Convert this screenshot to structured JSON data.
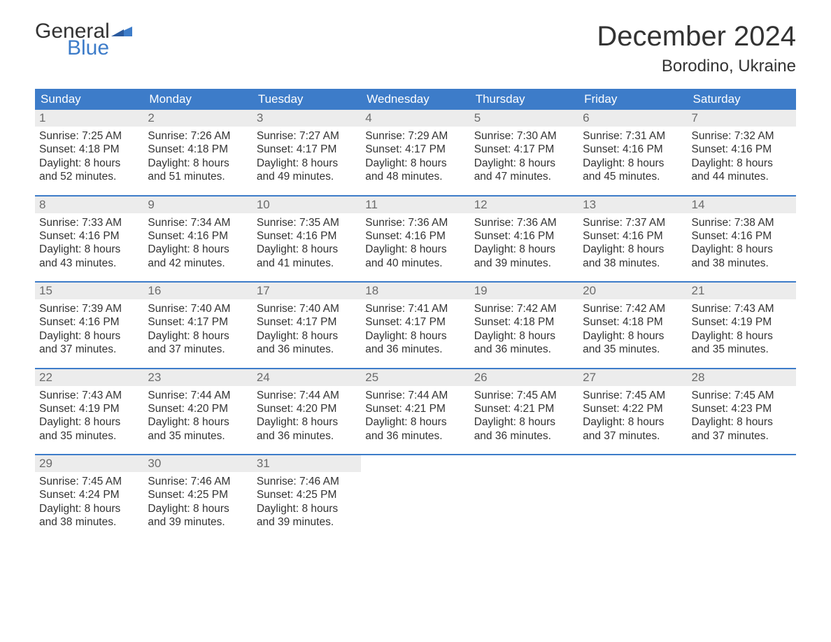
{
  "logo": {
    "word1": "General",
    "word2": "Blue"
  },
  "title": "December 2024",
  "location": "Borodino, Ukraine",
  "colors": {
    "brand_blue": "#3d7cc9",
    "header_bg": "#3d7cc9",
    "header_text": "#ffffff",
    "daynum_bg": "#ececec",
    "daynum_text": "#6b6b6b",
    "body_text": "#333333",
    "page_bg": "#ffffff"
  },
  "typography": {
    "title_fontsize": 40,
    "location_fontsize": 24,
    "dayhead_fontsize": 17,
    "daynum_fontsize": 17,
    "body_fontsize": 15.5,
    "logo_fontsize": 30
  },
  "day_headers": [
    "Sunday",
    "Monday",
    "Tuesday",
    "Wednesday",
    "Thursday",
    "Friday",
    "Saturday"
  ],
  "weeks": [
    [
      {
        "n": "1",
        "sr": "Sunrise: 7:25 AM",
        "ss": "Sunset: 4:18 PM",
        "d1": "Daylight: 8 hours",
        "d2": "and 52 minutes."
      },
      {
        "n": "2",
        "sr": "Sunrise: 7:26 AM",
        "ss": "Sunset: 4:18 PM",
        "d1": "Daylight: 8 hours",
        "d2": "and 51 minutes."
      },
      {
        "n": "3",
        "sr": "Sunrise: 7:27 AM",
        "ss": "Sunset: 4:17 PM",
        "d1": "Daylight: 8 hours",
        "d2": "and 49 minutes."
      },
      {
        "n": "4",
        "sr": "Sunrise: 7:29 AM",
        "ss": "Sunset: 4:17 PM",
        "d1": "Daylight: 8 hours",
        "d2": "and 48 minutes."
      },
      {
        "n": "5",
        "sr": "Sunrise: 7:30 AM",
        "ss": "Sunset: 4:17 PM",
        "d1": "Daylight: 8 hours",
        "d2": "and 47 minutes."
      },
      {
        "n": "6",
        "sr": "Sunrise: 7:31 AM",
        "ss": "Sunset: 4:16 PM",
        "d1": "Daylight: 8 hours",
        "d2": "and 45 minutes."
      },
      {
        "n": "7",
        "sr": "Sunrise: 7:32 AM",
        "ss": "Sunset: 4:16 PM",
        "d1": "Daylight: 8 hours",
        "d2": "and 44 minutes."
      }
    ],
    [
      {
        "n": "8",
        "sr": "Sunrise: 7:33 AM",
        "ss": "Sunset: 4:16 PM",
        "d1": "Daylight: 8 hours",
        "d2": "and 43 minutes."
      },
      {
        "n": "9",
        "sr": "Sunrise: 7:34 AM",
        "ss": "Sunset: 4:16 PM",
        "d1": "Daylight: 8 hours",
        "d2": "and 42 minutes."
      },
      {
        "n": "10",
        "sr": "Sunrise: 7:35 AM",
        "ss": "Sunset: 4:16 PM",
        "d1": "Daylight: 8 hours",
        "d2": "and 41 minutes."
      },
      {
        "n": "11",
        "sr": "Sunrise: 7:36 AM",
        "ss": "Sunset: 4:16 PM",
        "d1": "Daylight: 8 hours",
        "d2": "and 40 minutes."
      },
      {
        "n": "12",
        "sr": "Sunrise: 7:36 AM",
        "ss": "Sunset: 4:16 PM",
        "d1": "Daylight: 8 hours",
        "d2": "and 39 minutes."
      },
      {
        "n": "13",
        "sr": "Sunrise: 7:37 AM",
        "ss": "Sunset: 4:16 PM",
        "d1": "Daylight: 8 hours",
        "d2": "and 38 minutes."
      },
      {
        "n": "14",
        "sr": "Sunrise: 7:38 AM",
        "ss": "Sunset: 4:16 PM",
        "d1": "Daylight: 8 hours",
        "d2": "and 38 minutes."
      }
    ],
    [
      {
        "n": "15",
        "sr": "Sunrise: 7:39 AM",
        "ss": "Sunset: 4:16 PM",
        "d1": "Daylight: 8 hours",
        "d2": "and 37 minutes."
      },
      {
        "n": "16",
        "sr": "Sunrise: 7:40 AM",
        "ss": "Sunset: 4:17 PM",
        "d1": "Daylight: 8 hours",
        "d2": "and 37 minutes."
      },
      {
        "n": "17",
        "sr": "Sunrise: 7:40 AM",
        "ss": "Sunset: 4:17 PM",
        "d1": "Daylight: 8 hours",
        "d2": "and 36 minutes."
      },
      {
        "n": "18",
        "sr": "Sunrise: 7:41 AM",
        "ss": "Sunset: 4:17 PM",
        "d1": "Daylight: 8 hours",
        "d2": "and 36 minutes."
      },
      {
        "n": "19",
        "sr": "Sunrise: 7:42 AM",
        "ss": "Sunset: 4:18 PM",
        "d1": "Daylight: 8 hours",
        "d2": "and 36 minutes."
      },
      {
        "n": "20",
        "sr": "Sunrise: 7:42 AM",
        "ss": "Sunset: 4:18 PM",
        "d1": "Daylight: 8 hours",
        "d2": "and 35 minutes."
      },
      {
        "n": "21",
        "sr": "Sunrise: 7:43 AM",
        "ss": "Sunset: 4:19 PM",
        "d1": "Daylight: 8 hours",
        "d2": "and 35 minutes."
      }
    ],
    [
      {
        "n": "22",
        "sr": "Sunrise: 7:43 AM",
        "ss": "Sunset: 4:19 PM",
        "d1": "Daylight: 8 hours",
        "d2": "and 35 minutes."
      },
      {
        "n": "23",
        "sr": "Sunrise: 7:44 AM",
        "ss": "Sunset: 4:20 PM",
        "d1": "Daylight: 8 hours",
        "d2": "and 35 minutes."
      },
      {
        "n": "24",
        "sr": "Sunrise: 7:44 AM",
        "ss": "Sunset: 4:20 PM",
        "d1": "Daylight: 8 hours",
        "d2": "and 36 minutes."
      },
      {
        "n": "25",
        "sr": "Sunrise: 7:44 AM",
        "ss": "Sunset: 4:21 PM",
        "d1": "Daylight: 8 hours",
        "d2": "and 36 minutes."
      },
      {
        "n": "26",
        "sr": "Sunrise: 7:45 AM",
        "ss": "Sunset: 4:21 PM",
        "d1": "Daylight: 8 hours",
        "d2": "and 36 minutes."
      },
      {
        "n": "27",
        "sr": "Sunrise: 7:45 AM",
        "ss": "Sunset: 4:22 PM",
        "d1": "Daylight: 8 hours",
        "d2": "and 37 minutes."
      },
      {
        "n": "28",
        "sr": "Sunrise: 7:45 AM",
        "ss": "Sunset: 4:23 PM",
        "d1": "Daylight: 8 hours",
        "d2": "and 37 minutes."
      }
    ],
    [
      {
        "n": "29",
        "sr": "Sunrise: 7:45 AM",
        "ss": "Sunset: 4:24 PM",
        "d1": "Daylight: 8 hours",
        "d2": "and 38 minutes."
      },
      {
        "n": "30",
        "sr": "Sunrise: 7:46 AM",
        "ss": "Sunset: 4:25 PM",
        "d1": "Daylight: 8 hours",
        "d2": "and 39 minutes."
      },
      {
        "n": "31",
        "sr": "Sunrise: 7:46 AM",
        "ss": "Sunset: 4:25 PM",
        "d1": "Daylight: 8 hours",
        "d2": "and 39 minutes."
      },
      null,
      null,
      null,
      null
    ]
  ]
}
